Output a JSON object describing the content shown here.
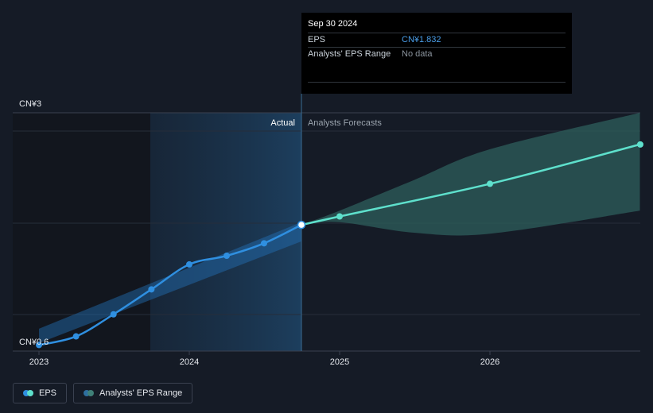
{
  "chart_data": {
    "type": "line",
    "y_axis": {
      "top_label": "CN¥3",
      "bottom_label": "CN¥0.6",
      "ylim": [
        0.6,
        3.0
      ]
    },
    "x_axis": {
      "ticks": [
        "2023",
        "2024",
        "2025",
        "2026"
      ]
    },
    "sections": {
      "actual_label": "Actual",
      "forecast_label": "Analysts Forecasts"
    },
    "series": [
      {
        "name": "EPS",
        "color": "#2f8fe0",
        "points": [
          {
            "x": "2023-01-01",
            "y": 0.58
          },
          {
            "x": "2023-04-01",
            "y": 0.67
          },
          {
            "x": "2023-07-01",
            "y": 0.9
          },
          {
            "x": "2023-10-01",
            "y": 1.16
          },
          {
            "x": "2024-01-01",
            "y": 1.42
          },
          {
            "x": "2024-04-01",
            "y": 1.51
          },
          {
            "x": "2024-07-01",
            "y": 1.64
          },
          {
            "x": "2024-09-30",
            "y": 1.832
          }
        ]
      },
      {
        "name": "EPS Forecast",
        "color": "#5ee0cc",
        "points": [
          {
            "x": "2024-09-30",
            "y": 1.832
          },
          {
            "x": "2025-01-01",
            "y": 1.92
          },
          {
            "x": "2026-01-01",
            "y": 2.26
          },
          {
            "x": "2026-12-31",
            "y": 2.67
          }
        ]
      }
    ],
    "actual_band": [
      {
        "x": "2023-01-01",
        "low": 0.6,
        "high": 0.75
      },
      {
        "x": "2024-09-30",
        "low": 1.66,
        "high": 1.86
      }
    ],
    "forecast_range": [
      {
        "x": "2024-09-30",
        "low": 1.832,
        "high": 1.832
      },
      {
        "x": "2025-01-01",
        "low": 1.86,
        "high": 1.98
      },
      {
        "x": "2025-07-01",
        "low": 1.75,
        "high": 2.3
      },
      {
        "x": "2026-01-01",
        "low": 1.74,
        "high": 2.62
      },
      {
        "x": "2026-12-31",
        "low": 1.98,
        "high": 3.0
      }
    ],
    "highlight_point": {
      "x": "2024-09-30",
      "y": 1.832
    },
    "grid": true
  },
  "tooltip": {
    "date": "Sep 30 2024",
    "eps_label": "EPS",
    "eps_value": "CN¥1.832",
    "range_label": "Analysts' EPS Range",
    "range_value": "No data"
  },
  "legend": {
    "eps_label": "EPS",
    "eps_colors": [
      "#2f8fe0",
      "#5ee0cc"
    ],
    "range_label": "Analysts' EPS Range",
    "range_colors": [
      "#2e6fa0",
      "#3f8078"
    ]
  }
}
